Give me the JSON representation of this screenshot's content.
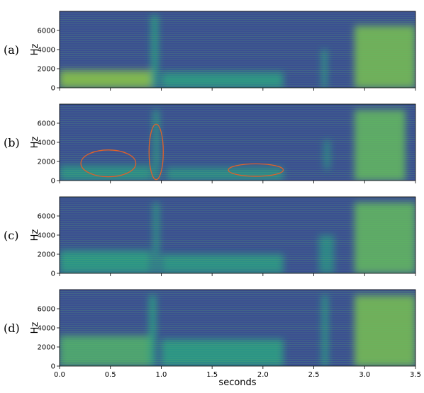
{
  "chart_data": {
    "type": "heatmap",
    "colors": {
      "background": "#3b4f91",
      "low": "#31678e",
      "mid": "#2aa084",
      "high": "#c8e020"
    },
    "xlabel": "seconds",
    "xlim": [
      0,
      3.5
    ],
    "xticks": [
      "0.0",
      "0.5",
      "1.0",
      "1.5",
      "2.0",
      "2.5",
      "3.0",
      "3.5"
    ],
    "xtick_values": [
      0,
      0.5,
      1.0,
      1.5,
      2.0,
      2.5,
      3.0,
      3.5
    ],
    "ylim": [
      0,
      8000
    ],
    "yticks": [
      "0",
      "2000",
      "4000",
      "6000"
    ],
    "ytick_values": [
      0,
      2000,
      4000,
      6000
    ],
    "panels": [
      {
        "label": "(a)",
        "ylabel": "Hz",
        "energy": [
          {
            "x": [
              0.0,
              0.9
            ],
            "y": [
              0,
              1800
            ],
            "level": 0.85
          },
          {
            "x": [
              0.9,
              0.97
            ],
            "y": [
              0,
              7600
            ],
            "level": 0.6
          },
          {
            "x": [
              1.0,
              2.2
            ],
            "y": [
              0,
              1600
            ],
            "level": 0.6
          },
          {
            "x": [
              2.58,
              2.63
            ],
            "y": [
              0,
              4000
            ],
            "level": 0.55
          },
          {
            "x": [
              2.9,
              3.5
            ],
            "y": [
              0,
              6500
            ],
            "level": 0.8
          }
        ],
        "annotations": []
      },
      {
        "label": "(b)",
        "ylabel": "Hz",
        "energy": [
          {
            "x": [
              0.0,
              0.9
            ],
            "y": [
              0,
              1600
            ],
            "level": 0.5
          },
          {
            "x": [
              0.92,
              0.98
            ],
            "y": [
              0,
              7400
            ],
            "level": 0.55
          },
          {
            "x": [
              1.05,
              2.2
            ],
            "y": [
              0,
              1400
            ],
            "level": 0.45
          },
          {
            "x": [
              2.6,
              2.66
            ],
            "y": [
              1200,
              4200
            ],
            "level": 0.4
          },
          {
            "x": [
              2.9,
              3.4
            ],
            "y": [
              0,
              7400
            ],
            "level": 0.75
          }
        ],
        "annotations": [
          {
            "shape": "ellipse",
            "cx": 0.48,
            "cy": 1800,
            "rx": 0.27,
            "ry": 1400,
            "color": "#e0602a"
          },
          {
            "shape": "ellipse",
            "cx": 0.95,
            "cy": 3000,
            "rx": 0.07,
            "ry": 2900,
            "color": "#e0602a"
          },
          {
            "shape": "ellipse",
            "cx": 1.93,
            "cy": 1100,
            "rx": 0.27,
            "ry": 650,
            "color": "#e0602a"
          }
        ]
      },
      {
        "label": "(c)",
        "ylabel": "Hz",
        "energy": [
          {
            "x": [
              0.0,
              0.9
            ],
            "y": [
              0,
              2400
            ],
            "level": 0.6
          },
          {
            "x": [
              0.92,
              0.98
            ],
            "y": [
              0,
              7400
            ],
            "level": 0.5
          },
          {
            "x": [
              1.0,
              2.2
            ],
            "y": [
              0,
              2000
            ],
            "level": 0.55
          },
          {
            "x": [
              2.55,
              2.7
            ],
            "y": [
              0,
              4000
            ],
            "level": 0.4
          },
          {
            "x": [
              2.9,
              3.5
            ],
            "y": [
              0,
              7400
            ],
            "level": 0.75
          }
        ],
        "annotations": []
      },
      {
        "label": "(d)",
        "ylabel": "Hz",
        "energy": [
          {
            "x": [
              0.0,
              0.9
            ],
            "y": [
              0,
              3200
            ],
            "level": 0.7
          },
          {
            "x": [
              0.88,
              0.95
            ],
            "y": [
              0,
              7400
            ],
            "level": 0.6
          },
          {
            "x": [
              1.0,
              2.2
            ],
            "y": [
              0,
              2800
            ],
            "level": 0.6
          },
          {
            "x": [
              2.58,
              2.64
            ],
            "y": [
              0,
              7400
            ],
            "level": 0.55
          },
          {
            "x": [
              2.9,
              3.5
            ],
            "y": [
              0,
              7400
            ],
            "level": 0.8
          }
        ],
        "annotations": []
      }
    ]
  }
}
